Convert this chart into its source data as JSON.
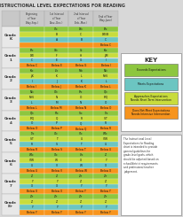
{
  "title": "INSTRUCTIONAL LEVEL EXPECTATIONS FOR READING",
  "col_headers": [
    "Beginning\nof Year\n(May-Sep.)",
    "1st Interval\nof Year\n(Nov.-Dec.)",
    "2nd Interval\nof Year\n(Feb.-Mar.)",
    "End of Year\n(May-June)"
  ],
  "grades": [
    {
      "label": "Grade\nK",
      "rows": [
        [
          "",
          "C/c",
          "D/c",
          "E/c"
        ],
        [
          "",
          "B",
          "C",
          "D/E/B"
        ],
        [
          "",
          "A",
          "B",
          "C"
        ],
        [
          "",
          "",
          "",
          "Below C"
        ]
      ]
    },
    {
      "label": "Grade\n1",
      "rows": [
        [
          "E/c",
          "G/c",
          "I/c",
          "K/c"
        ],
        [
          "D/E",
          "F",
          "H",
          "J/M"
        ],
        [
          "C",
          "E",
          "G",
          "I"
        ],
        [
          "Below C",
          "Below E",
          "Below G",
          "Below I"
        ]
      ]
    },
    {
      "label": "Grade\n2",
      "rows": [
        [
          "K/c",
          "L/c",
          "M/c",
          "N/c"
        ],
        [
          "J/K",
          "K",
          "L",
          "M/N"
        ],
        [
          "I",
          "J",
          "K",
          "L"
        ],
        [
          "Below I",
          "Below J",
          "Below K",
          "Below L"
        ]
      ]
    },
    {
      "label": "Grade\n3",
      "rows": [
        [
          "N/c",
          "O/c",
          "P/c",
          "Q/c"
        ],
        [
          "M/N",
          "N",
          "O",
          "P/Q"
        ],
        [
          "L",
          "M",
          "N",
          "O"
        ],
        [
          "Below L",
          "Below M",
          "Below N",
          "Below O"
        ]
      ]
    },
    {
      "label": "Grade\n4",
      "rows": [
        [
          "Q/c",
          "R/c",
          "S/c",
          "T/c"
        ],
        [
          "P/Q",
          "Q",
          "R",
          "S/T"
        ],
        [
          "O",
          "P",
          "Q",
          "R"
        ],
        [
          "Below O",
          "Below P",
          "Below Q",
          "Below R"
        ]
      ]
    },
    {
      "label": "Grade\n5",
      "rows": [
        [
          "T/c",
          "U/c",
          "V/c",
          "W/c"
        ],
        [
          "S/T",
          "T",
          "U",
          "V/W"
        ],
        [
          "R",
          "S",
          "T",
          "U"
        ],
        [
          "Below R",
          "Below S",
          "Below T",
          "Below U"
        ]
      ]
    },
    {
      "label": "Grade\n6",
      "rows": [
        [
          "W/c",
          "X/c",
          "Y/c",
          "Z"
        ],
        [
          "V/W",
          "W",
          "X",
          "Y"
        ],
        [
          "U",
          "V",
          "W",
          "X"
        ],
        [
          "Below U",
          "Below V",
          "Below W",
          "Below X"
        ]
      ]
    },
    {
      "label": "Grade\n7",
      "rows": [
        [
          "Z",
          "Z",
          "Z+",
          "Z+"
        ],
        [
          "Y",
          "Y",
          "Z",
          "Z"
        ],
        [
          "X",
          "X",
          "Y",
          "Y"
        ],
        [
          "Below X",
          "Below X",
          "Below Y",
          "Below Y"
        ]
      ]
    },
    {
      "label": "Grade\n8+",
      "rows": [
        [
          "Z+",
          "Z+",
          "Z+",
          "Z+"
        ],
        [
          "Z",
          "Z",
          "Z",
          "Z"
        ],
        [
          "Y",
          "Y",
          "Y",
          "Y"
        ],
        [
          "Below Y",
          "Below Y",
          "Below Y",
          "Below Y"
        ]
      ]
    }
  ],
  "row_colors": [
    "#8dc63f",
    "#c8dc3c",
    "#6cc5c1",
    "#f7941d"
  ],
  "key_labels": [
    "Exceeds Expectations",
    "Meets Expectations",
    "Approaches Expectations\nNeeds Short-Term Intervention",
    "Does Not Meet Expectations\nNeeds Intensive Intervention"
  ],
  "key_colors": [
    "#8dc63f",
    "#6cc5c1",
    "#c8dc3c",
    "#f7941d"
  ],
  "bg_color": "#d8d8d8",
  "grade_label_bg": "#e8e8e8",
  "header_bg": "#c8c8c8",
  "title_color": "#333333",
  "grade_color": "#333333",
  "note_text": "The Instructional Level\nExpectations for Reading\nchart is intended to provide\ngeneral guidelines for\ngrade-level goals, which\nshould be adjusted based on\nschool/district requirements\nand professional teacher\njudgement."
}
